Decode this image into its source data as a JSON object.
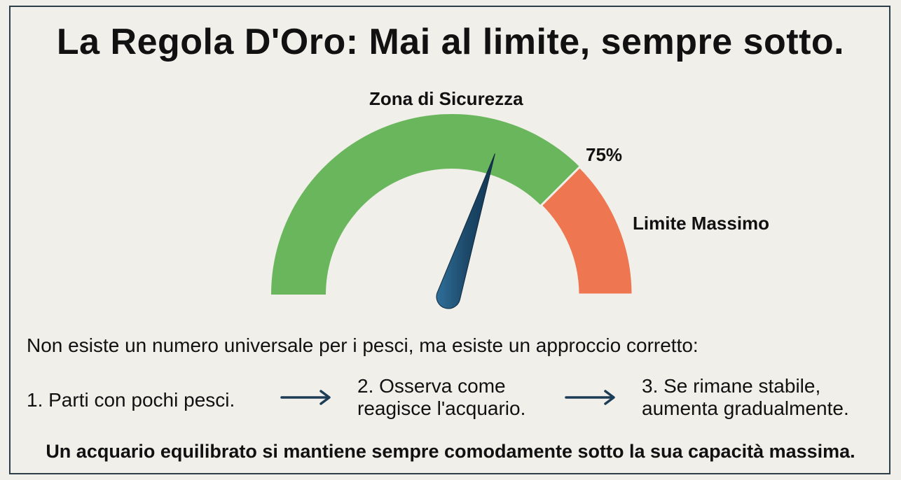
{
  "title": "La Regola D'Oro: Mai al limite, sempre sotto.",
  "gauge": {
    "safe_zone_label": "Zona di Sicurezza",
    "threshold_label": "75%",
    "max_label": "Limite Massimo",
    "threshold_fraction": 0.75,
    "needle_fraction": 0.6,
    "colors": {
      "safe": "#69b65c",
      "limit": "#ee7650",
      "needle": "#1d4a6b"
    }
  },
  "intro": "Non esiste un numero universale per i pesci, ma esiste un approccio corretto:",
  "steps": [
    {
      "line1": "1. Parti con pochi pesci.",
      "line2": ""
    },
    {
      "line1": "2. Osserva come",
      "line2": "reagisce l'acquario."
    },
    {
      "line1": "3. Se rimane stabile,",
      "line2": "aumenta gradualmente."
    }
  ],
  "arrow_icon": "arrow-right-icon",
  "footer": "Un acquario equilibrato si mantiene sempre comodamente sotto la sua capacità massima."
}
